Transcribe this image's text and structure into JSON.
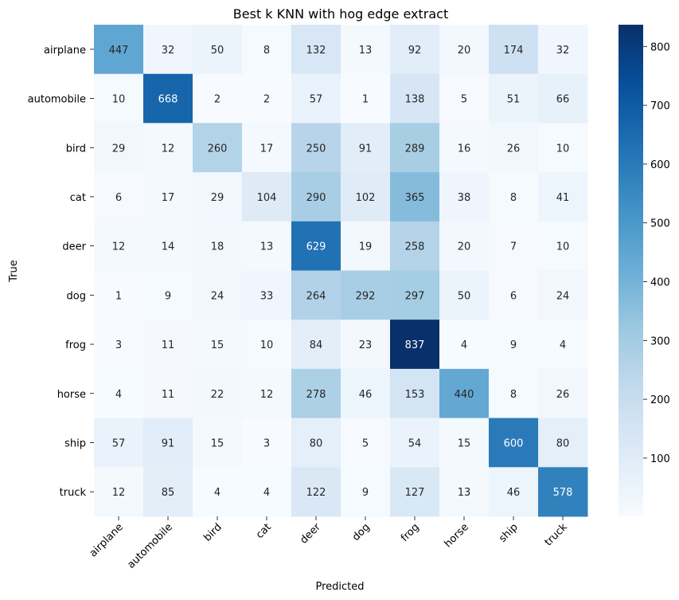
{
  "chart_data": {
    "type": "heatmap",
    "title": "Best k KNN with hog edge extract",
    "xlabel": "Predicted",
    "ylabel": "True",
    "x_categories": [
      "airplane",
      "automobile",
      "bird",
      "cat",
      "deer",
      "dog",
      "frog",
      "horse",
      "ship",
      "truck"
    ],
    "y_categories": [
      "airplane",
      "automobile",
      "bird",
      "cat",
      "deer",
      "dog",
      "frog",
      "horse",
      "ship",
      "truck"
    ],
    "values": [
      [
        447,
        32,
        50,
        8,
        132,
        13,
        92,
        20,
        174,
        32
      ],
      [
        10,
        668,
        2,
        2,
        57,
        1,
        138,
        5,
        51,
        66
      ],
      [
        29,
        12,
        260,
        17,
        250,
        91,
        289,
        16,
        26,
        10
      ],
      [
        6,
        17,
        29,
        104,
        290,
        102,
        365,
        38,
        8,
        41
      ],
      [
        12,
        14,
        18,
        13,
        629,
        19,
        258,
        20,
        7,
        10
      ],
      [
        1,
        9,
        24,
        33,
        264,
        292,
        297,
        50,
        6,
        24
      ],
      [
        3,
        11,
        15,
        10,
        84,
        23,
        837,
        4,
        9,
        4
      ],
      [
        4,
        11,
        22,
        12,
        278,
        46,
        153,
        440,
        8,
        26
      ],
      [
        57,
        91,
        15,
        3,
        80,
        5,
        54,
        15,
        600,
        80
      ],
      [
        12,
        85,
        4,
        4,
        122,
        9,
        127,
        13,
        46,
        578
      ]
    ],
    "colormap": "Blues",
    "vmin": 1,
    "vmax": 837,
    "colorbar_ticks": [
      100,
      200,
      300,
      400,
      500,
      600,
      700,
      800
    ],
    "x_tick_rotation": 45,
    "annotated": true,
    "grid": false,
    "legend": "colorbar-right"
  }
}
